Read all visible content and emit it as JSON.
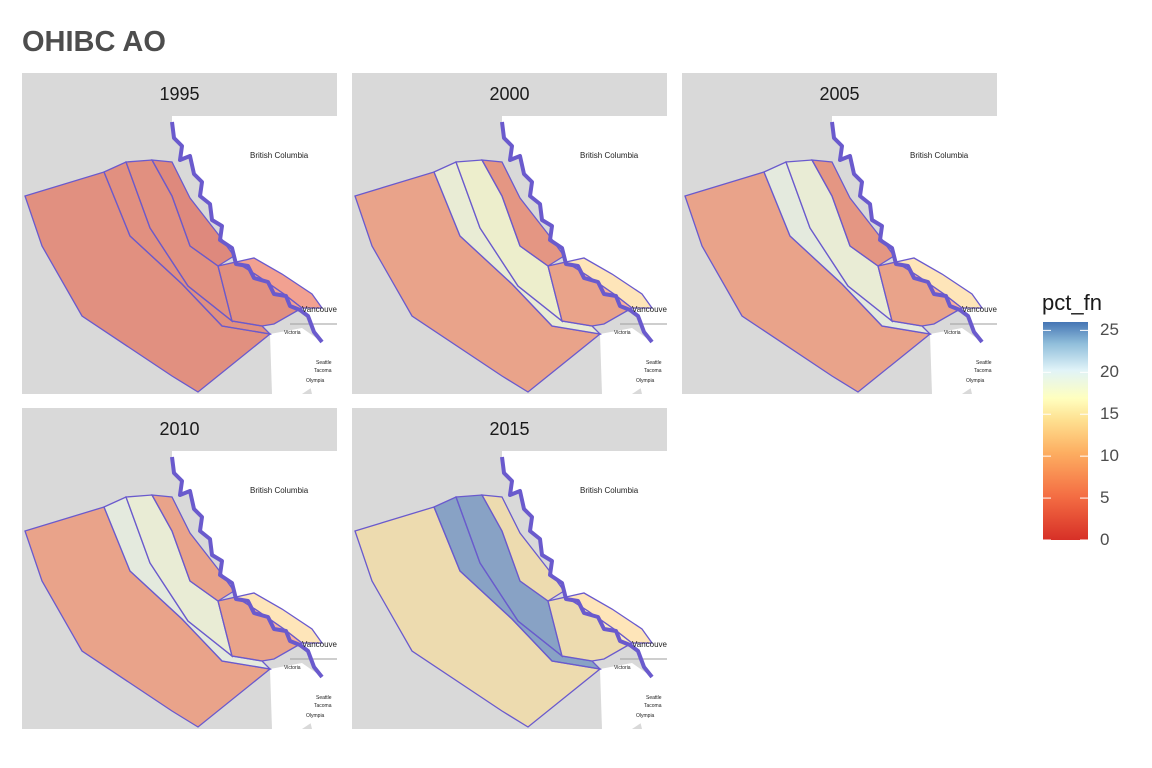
{
  "title": "OHIBC AO",
  "panels": [
    {
      "label": "1995",
      "region_values": {
        "offshore": 3,
        "nc_coast": 3,
        "central": 3,
        "west_vi": 3,
        "sog": 3,
        "n_inner": 2
      }
    },
    {
      "label": "2000",
      "region_values": {
        "offshore": 6,
        "nc_coast": 18,
        "central": 17,
        "west_vi": 6,
        "sog": 13,
        "n_inner": 4
      }
    },
    {
      "label": "2005",
      "region_values": {
        "offshore": 6,
        "nc_coast": 19,
        "central": 18,
        "west_vi": 6,
        "sog": 13,
        "n_inner": 4
      }
    },
    {
      "label": "2010",
      "region_values": {
        "offshore": 6,
        "nc_coast": 19,
        "central": 18,
        "west_vi": 6,
        "sog": 13,
        "n_inner": 6
      }
    },
    {
      "label": "2015",
      "region_values": {
        "offshore": 14,
        "nc_coast": 26,
        "central": 26,
        "west_vi": 14,
        "sog": 13,
        "n_inner": 14
      }
    }
  ],
  "place_labels": {
    "british_columbia": "British Columbia",
    "vancouver": "Vancouver",
    "seattle": "Seattle",
    "tacoma": "Tacoma",
    "olympia": "Olympia",
    "victoria": "Victoria"
  },
  "legend": {
    "title": "pct_fn",
    "ticks": [
      "25",
      "20",
      "15",
      "10",
      "5",
      "0"
    ],
    "range": [
      0,
      26
    ]
  },
  "colors": {
    "region_outline": "#6a5acd",
    "strip_bg": "#d9d9d9",
    "land_gray": "#bdbdbd"
  }
}
